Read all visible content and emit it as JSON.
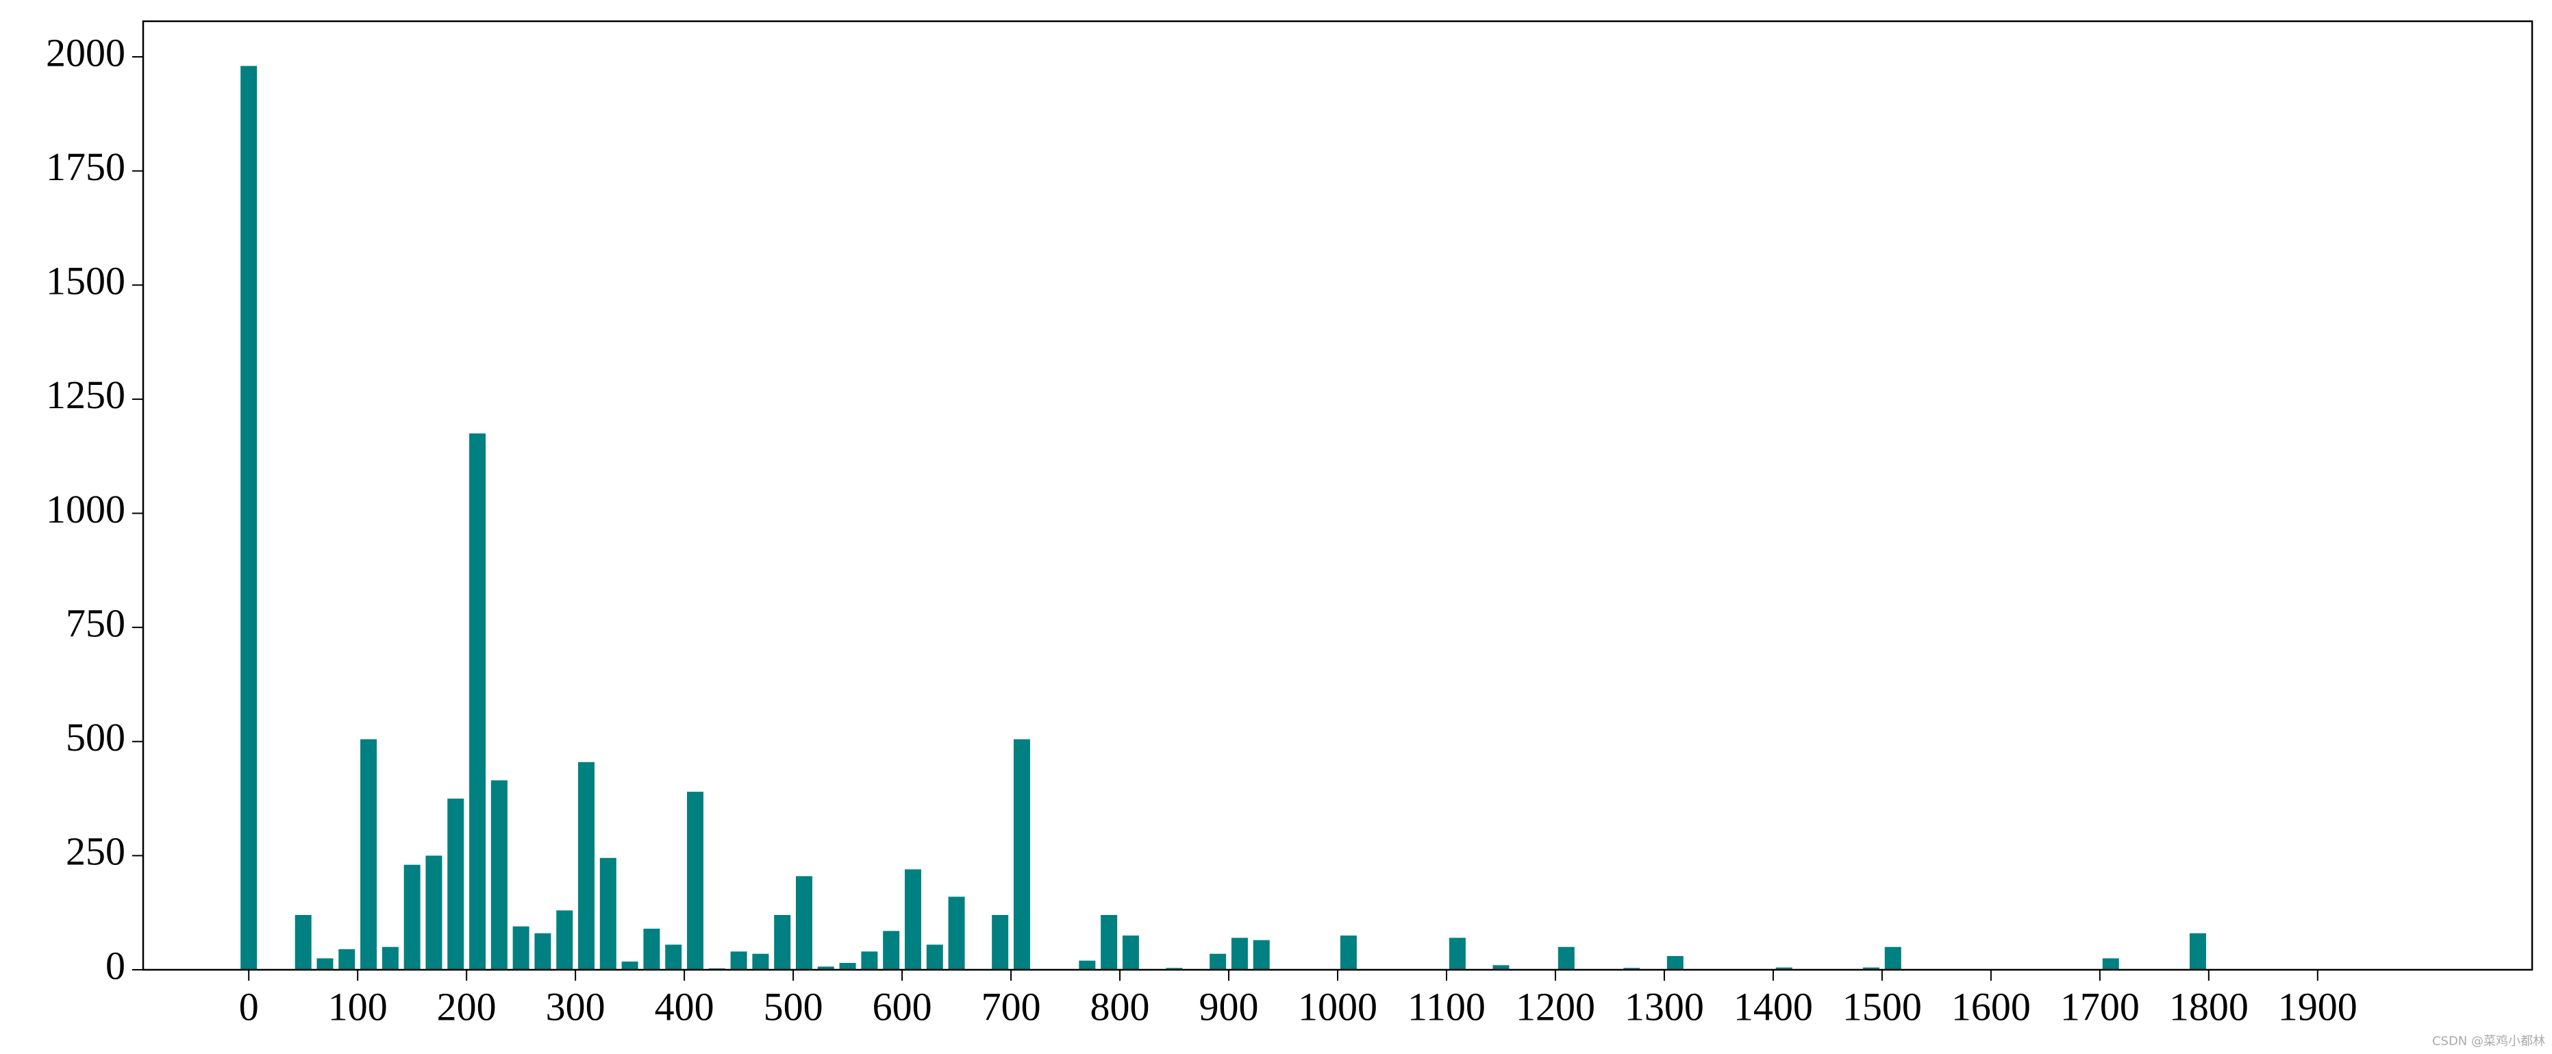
{
  "chart_data": {
    "type": "bar",
    "color": "#008080",
    "x": [
      0,
      50,
      70,
      90,
      110,
      130,
      150,
      170,
      190,
      210,
      230,
      250,
      270,
      290,
      310,
      330,
      350,
      370,
      390,
      410,
      430,
      450,
      470,
      490,
      510,
      530,
      550,
      570,
      590,
      610,
      630,
      650,
      690,
      710,
      770,
      790,
      810,
      850,
      890,
      910,
      930,
      1010,
      1110,
      1150,
      1210,
      1270,
      1310,
      1410,
      1490,
      1510,
      1710,
      1790
    ],
    "values": [
      1980,
      120,
      25,
      45,
      505,
      50,
      230,
      250,
      375,
      1175,
      415,
      95,
      80,
      130,
      455,
      245,
      18,
      90,
      55,
      390,
      3,
      40,
      35,
      120,
      205,
      7,
      15,
      40,
      85,
      220,
      55,
      160,
      120,
      505,
      20,
      120,
      75,
      4,
      35,
      70,
      65,
      75,
      70,
      10,
      50,
      4,
      30,
      5,
      5,
      50,
      25,
      80
    ],
    "xlim": [
      -97,
      2097
    ],
    "ylim": [
      0,
      2078
    ],
    "xticks": [
      0,
      100,
      200,
      300,
      400,
      500,
      600,
      700,
      800,
      900,
      1000,
      1100,
      1200,
      1300,
      1400,
      1500,
      1600,
      1700,
      1800,
      1900
    ],
    "yticks": [
      0,
      250,
      500,
      750,
      1000,
      1250,
      1500,
      1750,
      2000
    ]
  },
  "watermark": "CSDN @菜鸡小都林"
}
